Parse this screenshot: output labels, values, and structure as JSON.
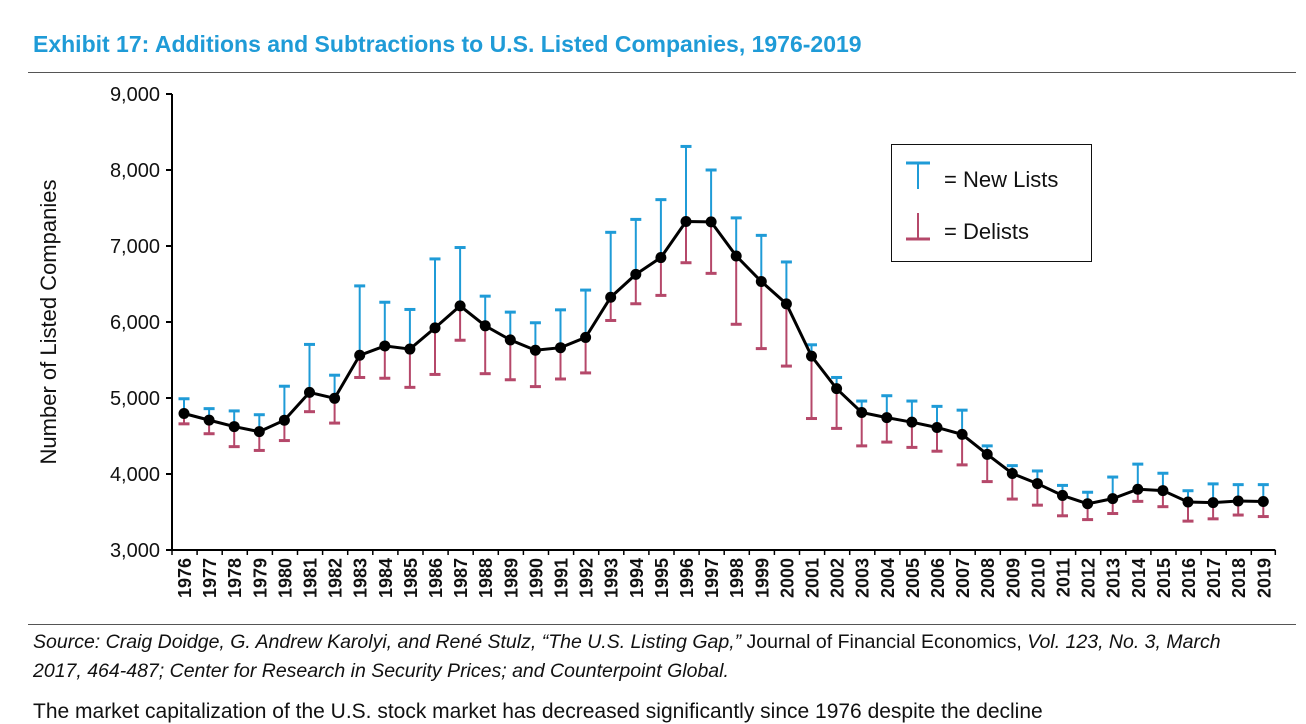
{
  "title": "Exhibit 17: Additions and Subtractions to U.S. Listed Companies, 1976-2019",
  "legend": {
    "new_lists_symbol": "⊤",
    "new_lists_label": "= New Lists",
    "delists_symbol": "⊥",
    "delists_label": "= Delists"
  },
  "source": {
    "prefix": "Source: Craig Doidge, G. Andrew Karolyi, and René Stulz, “The U.S. Listing Gap,”",
    "journal": " Journal of Financial Economics, ",
    "rest": "Vol. 123, No. 3, March 2017, 464-487; Center for Research in Security Prices; and Counterpoint Global."
  },
  "cut_text": "The market capitalization of the U.S. stock market has decreased significantly since 1976 despite the decline",
  "colors": {
    "title": "#1f9bd7",
    "new_lists": "#1f9bd7",
    "delists": "#b5486a",
    "line": "#000000"
  },
  "chart_data": {
    "type": "line",
    "title": "Exhibit 17: Additions and Subtractions to U.S. Listed Companies, 1976-2019",
    "xlabel": "",
    "ylabel": "Number of Listed Companies",
    "ylim": [
      3000,
      9000
    ],
    "yticks": [
      3000,
      4000,
      5000,
      6000,
      7000,
      8000,
      9000
    ],
    "ytick_labels": [
      "3,000",
      "4,000",
      "5,000",
      "6,000",
      "7,000",
      "8,000",
      "9,000"
    ],
    "grid": false,
    "legend_position": "top-right",
    "categories": [
      "1976",
      "1977",
      "1978",
      "1979",
      "1980",
      "1981",
      "1982",
      "1983",
      "1984",
      "1985",
      "1986",
      "1987",
      "1988",
      "1989",
      "1990",
      "1991",
      "1992",
      "1993",
      "1994",
      "1995",
      "1996",
      "1997",
      "1998",
      "1999",
      "2000",
      "2001",
      "2002",
      "2003",
      "2004",
      "2005",
      "2006",
      "2007",
      "2008",
      "2009",
      "2010",
      "2011",
      "2012",
      "2013",
      "2014",
      "2015",
      "2016",
      "2017",
      "2018",
      "2019"
    ],
    "series": [
      {
        "name": "Listed companies",
        "values": [
          4796,
          4709,
          4624,
          4557,
          4708,
          5074,
          4996,
          5562,
          5685,
          5644,
          5923,
          6212,
          5950,
          5764,
          5628,
          5662,
          5797,
          6326,
          6627,
          6848,
          7322,
          7317,
          6869,
          6533,
          6239,
          5551,
          5123,
          4809,
          4742,
          4682,
          4612,
          4521,
          4259,
          4007,
          3874,
          3718,
          3608,
          3676,
          3799,
          3782,
          3632,
          3623,
          3645,
          3638
        ]
      },
      {
        "name": "New Lists",
        "values": [
          4990,
          4860,
          4830,
          4780,
          5155,
          5705,
          5300,
          6475,
          6260,
          6165,
          6830,
          6980,
          6340,
          6130,
          5990,
          6160,
          6420,
          7180,
          7350,
          7610,
          8310,
          8000,
          7370,
          7140,
          6790,
          5700,
          5270,
          4960,
          5030,
          4960,
          4890,
          4840,
          4370,
          4110,
          4040,
          3850,
          3760,
          3960,
          4130,
          4010,
          3780,
          3870,
          3860,
          3860
        ]
      },
      {
        "name": "Delists",
        "values": [
          4660,
          4530,
          4360,
          4310,
          4440,
          4820,
          4670,
          5270,
          5260,
          5140,
          5310,
          5760,
          5320,
          5240,
          5150,
          5250,
          5330,
          6020,
          6240,
          6350,
          6780,
          6640,
          5970,
          5650,
          5420,
          4730,
          4600,
          4370,
          4420,
          4350,
          4300,
          4120,
          3900,
          3670,
          3590,
          3450,
          3400,
          3480,
          3640,
          3570,
          3380,
          3410,
          3460,
          3440
        ]
      }
    ]
  }
}
